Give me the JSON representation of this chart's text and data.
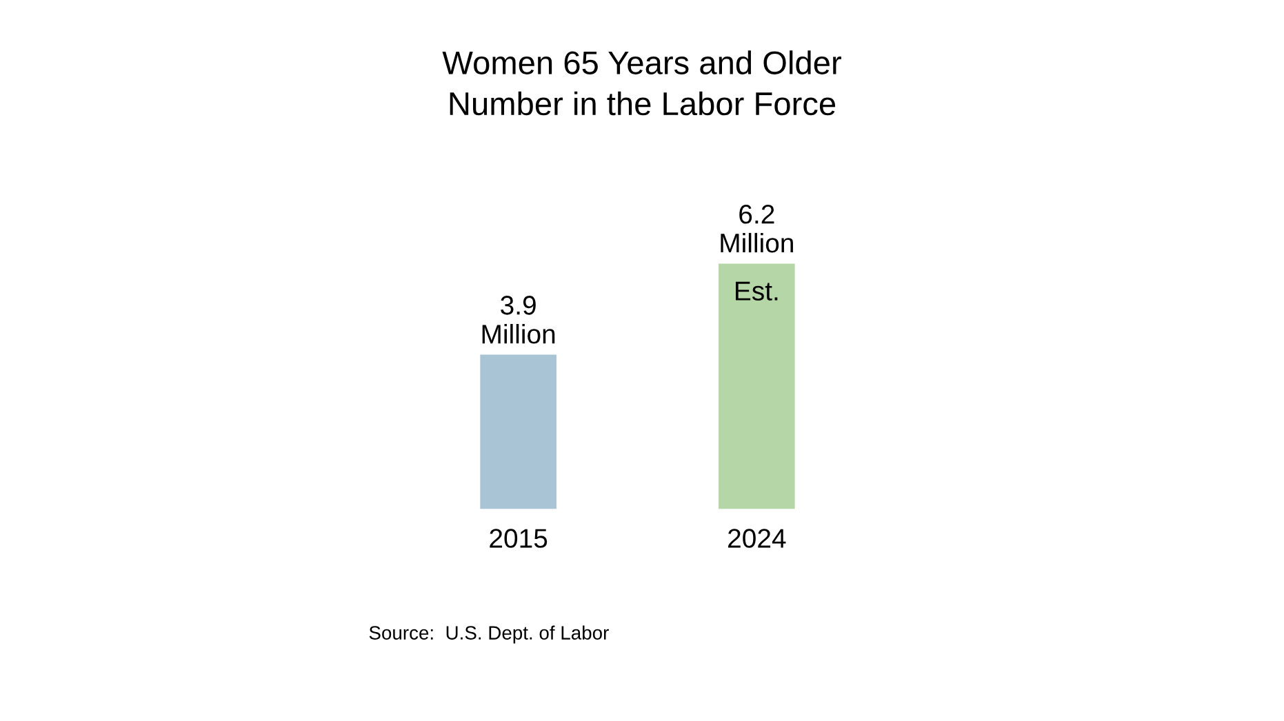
{
  "chart_data": {
    "type": "bar",
    "title": "Women 65 Years and Older\nNumber in the Labor Force",
    "categories": [
      "2015",
      "2024"
    ],
    "values": [
      3.9,
      6.2
    ],
    "colors": [
      "#a9c4d4",
      "#b5d6a6"
    ],
    "value_labels": [
      "3.9\nMillion",
      "6.2\nMillion"
    ],
    "annotations": [
      "Est.",
      "Source:  U.S. Dept. of Labor"
    ],
    "tick_labels": "x",
    "grid": false,
    "legend": false
  }
}
